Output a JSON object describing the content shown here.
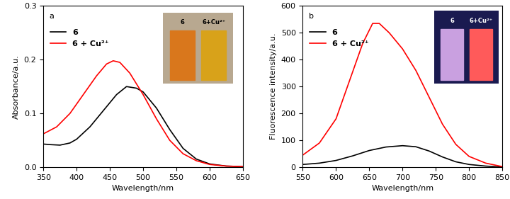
{
  "chart_data": [
    {
      "type": "line",
      "title": "a",
      "x_label": "Wavelength/nm",
      "y_label": "Absorbance/a.u.",
      "xlim": [
        350,
        650
      ],
      "xticks": [
        350,
        400,
        450,
        500,
        550,
        600,
        650
      ],
      "ylim": [
        0.0,
        0.3
      ],
      "yticks": [
        {
          "value": 0.0,
          "label": "0.0"
        },
        {
          "value": 0.1,
          "label": "0.1"
        },
        {
          "value": 0.2,
          "label": "0.2"
        },
        {
          "value": 0.3,
          "label": "0.3"
        }
      ],
      "legend": "upper left",
      "grid": false,
      "annotations": [
        "6",
        "6+Cu²⁺"
      ],
      "series": [
        {
          "name": "6",
          "color": "#000000",
          "x": [
            350,
            360,
            375,
            390,
            400,
            420,
            440,
            460,
            475,
            490,
            500,
            520,
            540,
            560,
            580,
            600,
            625,
            650
          ],
          "values": [
            0.043,
            0.042,
            0.041,
            0.045,
            0.052,
            0.075,
            0.105,
            0.135,
            0.15,
            0.147,
            0.14,
            0.11,
            0.07,
            0.035,
            0.015,
            0.006,
            0.002,
            0.001
          ]
        },
        {
          "name": "6 + Cu²⁺",
          "color": "#ff0000",
          "x": [
            350,
            370,
            390,
            410,
            430,
            445,
            455,
            465,
            480,
            500,
            520,
            540,
            560,
            580,
            600,
            625,
            650
          ],
          "values": [
            0.062,
            0.075,
            0.1,
            0.135,
            0.17,
            0.192,
            0.198,
            0.195,
            0.175,
            0.135,
            0.09,
            0.05,
            0.025,
            0.012,
            0.005,
            0.002,
            0.001
          ]
        }
      ]
    },
    {
      "type": "line",
      "title": "b",
      "x_label": "Wavelength/nm",
      "y_label": "Fluorescence intensity/a.u.",
      "xlim": [
        550,
        850
      ],
      "xticks": [
        550,
        600,
        650,
        700,
        750,
        800,
        850
      ],
      "ylim": [
        0,
        600
      ],
      "yticks": [
        0,
        100,
        200,
        300,
        400,
        500,
        600
      ],
      "legend": "upper left",
      "grid": false,
      "annotations": [
        "6",
        "6+Cu²⁺"
      ],
      "series": [
        {
          "name": "6",
          "color": "#000000",
          "x": [
            550,
            575,
            600,
            625,
            650,
            675,
            700,
            720,
            740,
            760,
            780,
            800,
            825,
            850
          ],
          "values": [
            10,
            15,
            25,
            42,
            62,
            75,
            80,
            76,
            60,
            38,
            20,
            10,
            4,
            0
          ]
        },
        {
          "name": "6 + Cu²⁺",
          "color": "#ff0000",
          "x": [
            550,
            575,
            600,
            620,
            640,
            655,
            665,
            680,
            700,
            720,
            740,
            760,
            780,
            800,
            825,
            850
          ],
          "values": [
            45,
            90,
            180,
            320,
            460,
            535,
            535,
            500,
            440,
            360,
            260,
            160,
            85,
            40,
            15,
            2
          ]
        }
      ]
    }
  ]
}
